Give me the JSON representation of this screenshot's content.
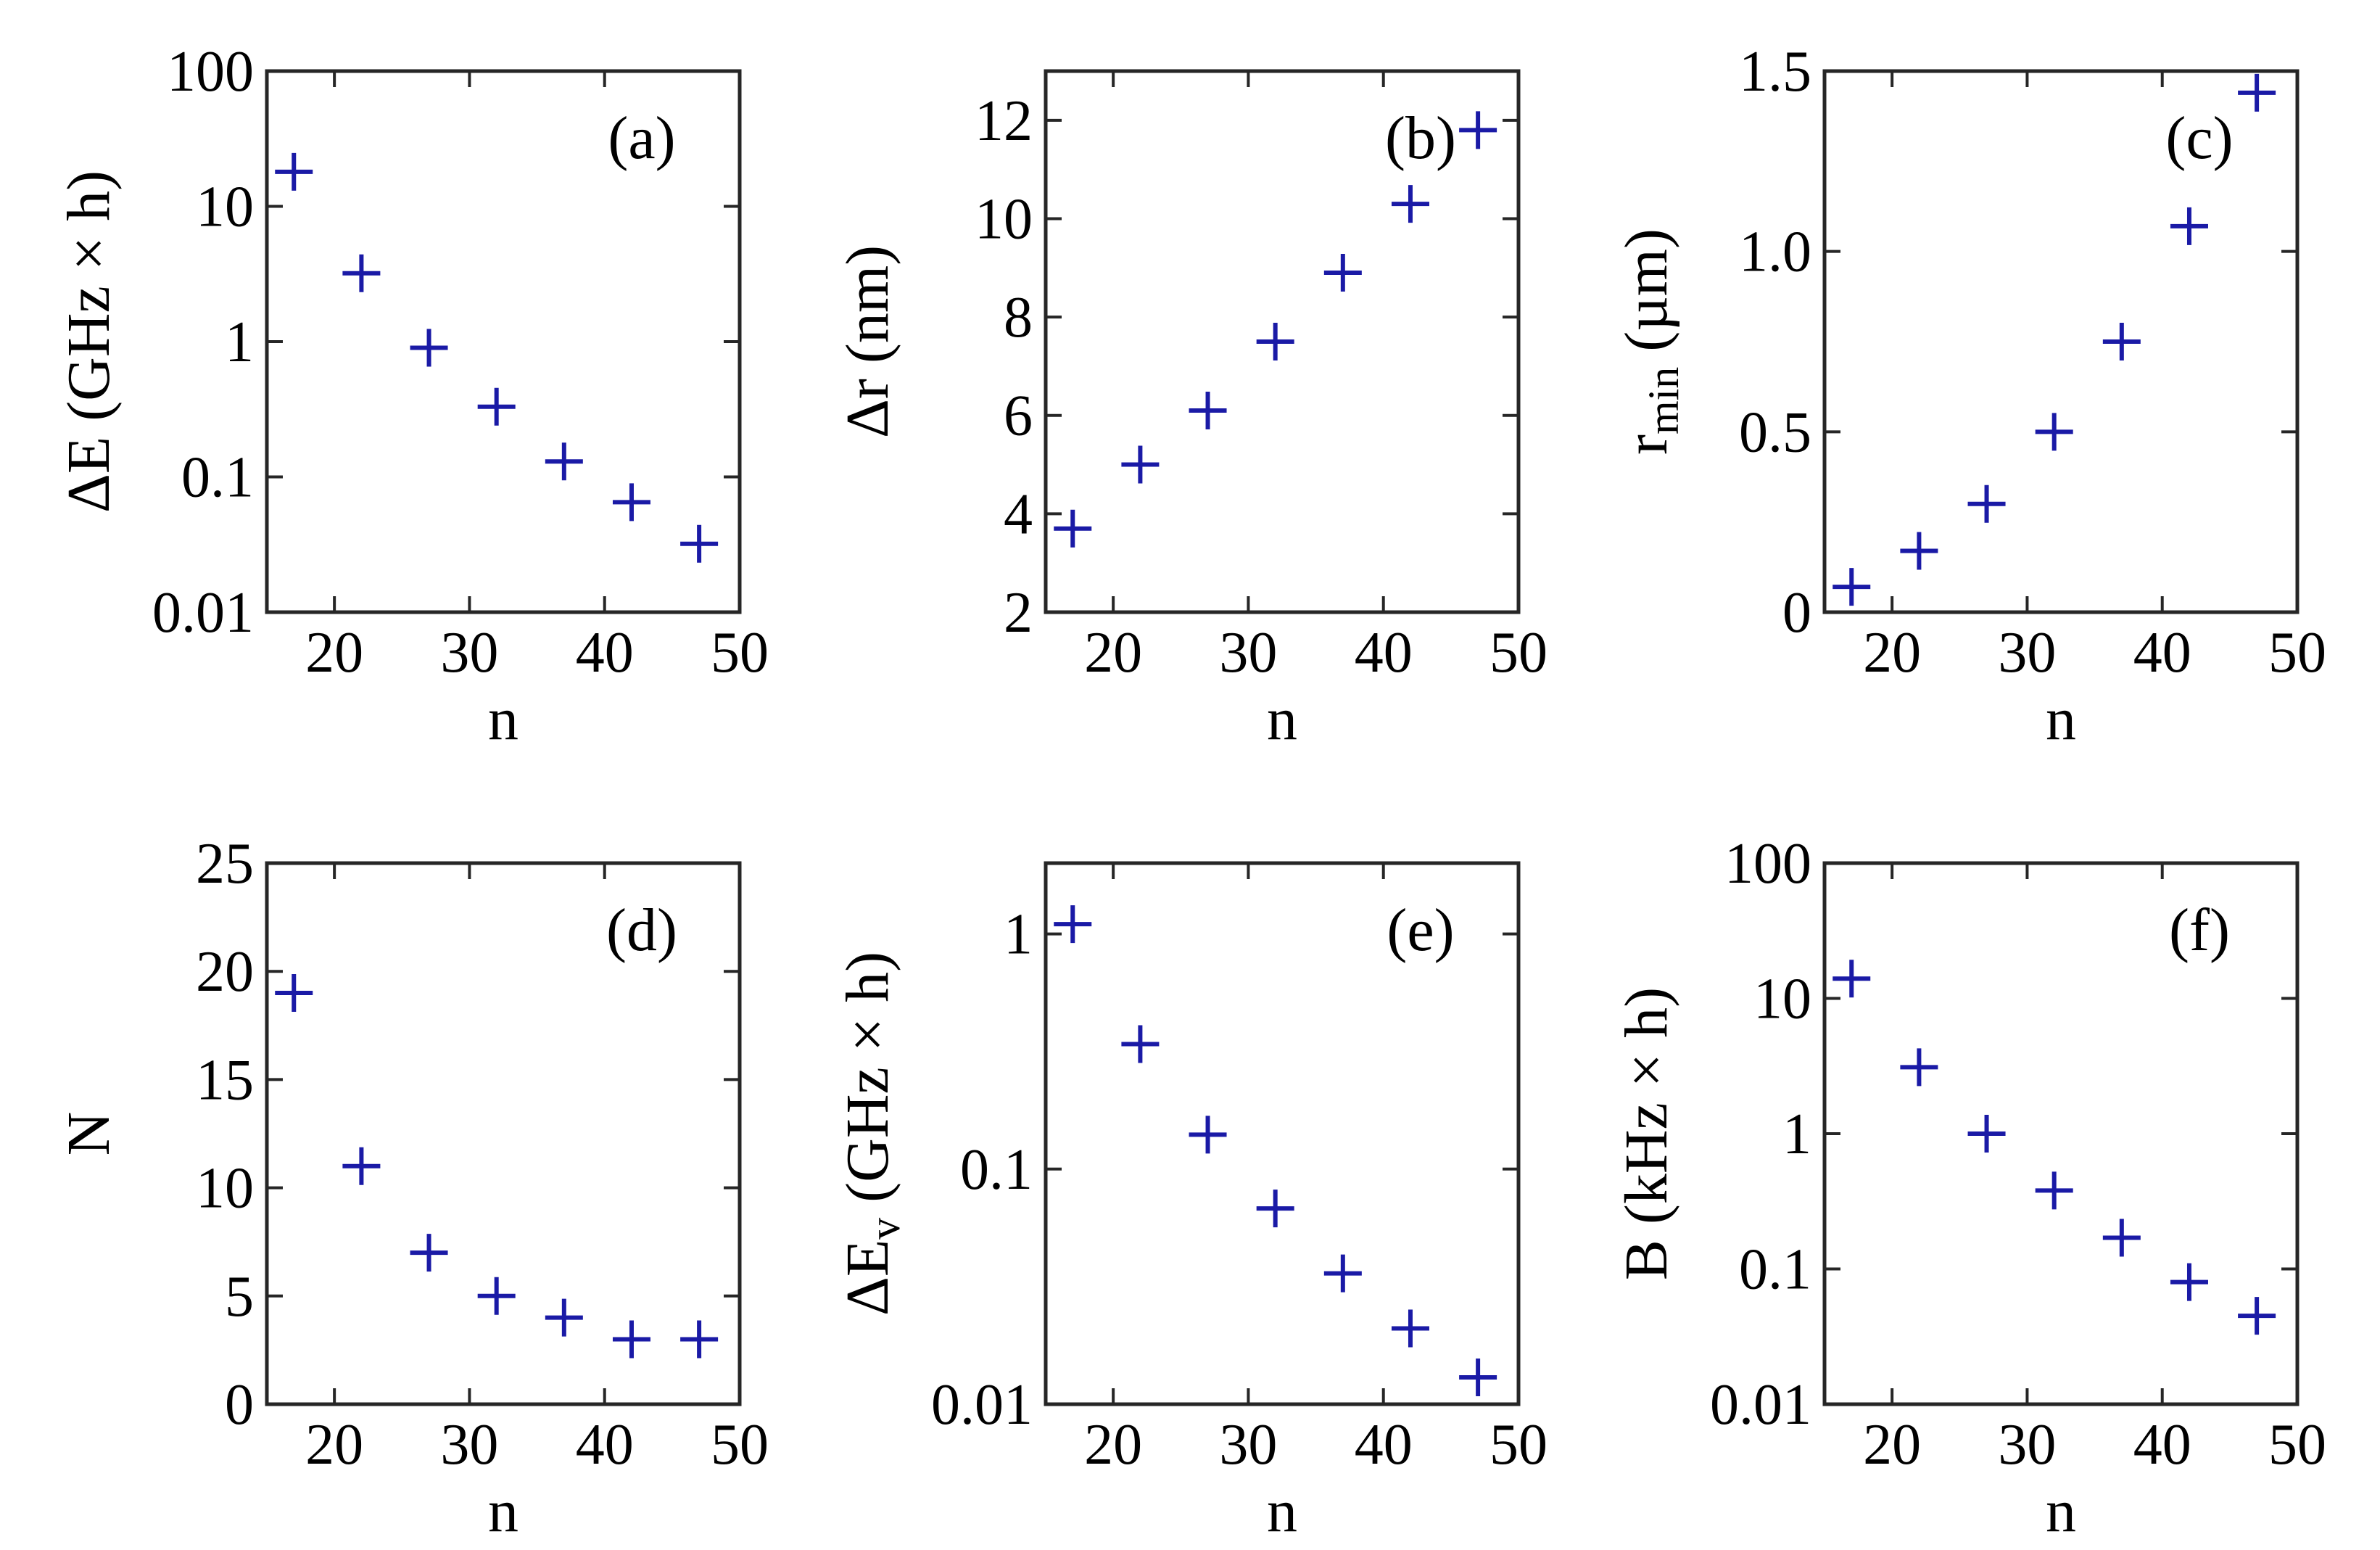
{
  "colors": {
    "marker": "#1a1aa6",
    "axis": "#262626"
  },
  "chart_data": [
    {
      "id": "a",
      "type": "scatter",
      "panel_label": "(a)",
      "xlabel": "n",
      "ylabel": "ΔE (GHz × h)",
      "yscale": "log",
      "xlim": [
        15,
        50
      ],
      "ylim": [
        0.01,
        100
      ],
      "xticks": [
        20,
        30,
        40,
        50
      ],
      "xtick_labels": [
        "20",
        "30",
        "40",
        "50"
      ],
      "yticks": [
        0.01,
        0.1,
        1,
        10,
        100
      ],
      "ytick_labels": [
        "0.01",
        "0.1",
        "1",
        "10",
        "100"
      ],
      "x": [
        17,
        22,
        27,
        32,
        37,
        42,
        47
      ],
      "y": [
        18,
        3.2,
        0.9,
        0.33,
        0.13,
        0.065,
        0.032
      ]
    },
    {
      "id": "b",
      "type": "scatter",
      "panel_label": "(b)",
      "xlabel": "n",
      "ylabel": "Δr (nm)",
      "yscale": "linear",
      "xlim": [
        15,
        50
      ],
      "ylim": [
        2,
        13
      ],
      "xticks": [
        20,
        30,
        40,
        50
      ],
      "xtick_labels": [
        "20",
        "30",
        "40",
        "50"
      ],
      "yticks": [
        2,
        4,
        6,
        8,
        10,
        12
      ],
      "ytick_labels": [
        "2",
        "4",
        "6",
        "8",
        "10",
        "12"
      ],
      "x": [
        17,
        22,
        27,
        32,
        37,
        42,
        47
      ],
      "y": [
        3.7,
        5.0,
        6.1,
        7.5,
        8.9,
        10.3,
        11.8
      ]
    },
    {
      "id": "c",
      "type": "scatter",
      "panel_label": "(c)",
      "xlabel": "n",
      "ylabel": "r",
      "ylabel_sub": "min",
      "ylabel_suffix": " (µm)",
      "yscale": "linear",
      "xlim": [
        15,
        50
      ],
      "ylim": [
        0,
        1.5
      ],
      "xticks": [
        20,
        30,
        40,
        50
      ],
      "xtick_labels": [
        "20",
        "30",
        "40",
        "50"
      ],
      "yticks": [
        0,
        0.5,
        1.0,
        1.5
      ],
      "ytick_labels": [
        "0",
        "0.5",
        "1.0",
        "1.5"
      ],
      "x": [
        17,
        22,
        27,
        32,
        37,
        42,
        47
      ],
      "y": [
        0.07,
        0.17,
        0.3,
        0.5,
        0.75,
        1.07,
        1.44
      ]
    },
    {
      "id": "d",
      "type": "scatter",
      "panel_label": "(d)",
      "xlabel": "n",
      "ylabel": "N",
      "yscale": "linear",
      "xlim": [
        15,
        50
      ],
      "ylim": [
        0,
        25
      ],
      "xticks": [
        20,
        30,
        40,
        50
      ],
      "xtick_labels": [
        "20",
        "30",
        "40",
        "50"
      ],
      "yticks": [
        0,
        5,
        10,
        15,
        20,
        25
      ],
      "ytick_labels": [
        "0",
        "5",
        "10",
        "15",
        "20",
        "25"
      ],
      "x": [
        17,
        22,
        27,
        32,
        37,
        42,
        47
      ],
      "y": [
        19,
        11,
        7,
        5,
        4,
        3,
        3
      ]
    },
    {
      "id": "e",
      "type": "scatter",
      "panel_label": "(e)",
      "xlabel": "n",
      "ylabel": "ΔE",
      "ylabel_sub": "v",
      "ylabel_suffix": " (GHz × h)",
      "yscale": "log",
      "xlim": [
        15,
        50
      ],
      "ylim": [
        0.01,
        2
      ],
      "xticks": [
        20,
        30,
        40,
        50
      ],
      "xtick_labels": [
        "20",
        "30",
        "40",
        "50"
      ],
      "yticks": [
        0.01,
        0.1,
        1
      ],
      "ytick_labels": [
        "0.01",
        "0.1",
        "1"
      ],
      "x": [
        17,
        22,
        27,
        32,
        37,
        42,
        47
      ],
      "y": [
        1.1,
        0.34,
        0.14,
        0.068,
        0.036,
        0.021,
        0.013
      ]
    },
    {
      "id": "f",
      "type": "scatter",
      "panel_label": "(f)",
      "xlabel": "n",
      "ylabel": "B (kHz × h)",
      "yscale": "log",
      "xlim": [
        15,
        50
      ],
      "ylim": [
        0.01,
        100
      ],
      "xticks": [
        20,
        30,
        40,
        50
      ],
      "xtick_labels": [
        "20",
        "30",
        "40",
        "50"
      ],
      "yticks": [
        0.01,
        0.1,
        1,
        10,
        100
      ],
      "ytick_labels": [
        "0.01",
        "0.1",
        "1",
        "10",
        "100"
      ],
      "x": [
        17,
        22,
        27,
        32,
        37,
        42,
        47
      ],
      "y": [
        14,
        3.1,
        1.0,
        0.38,
        0.17,
        0.08,
        0.045
      ]
    }
  ]
}
